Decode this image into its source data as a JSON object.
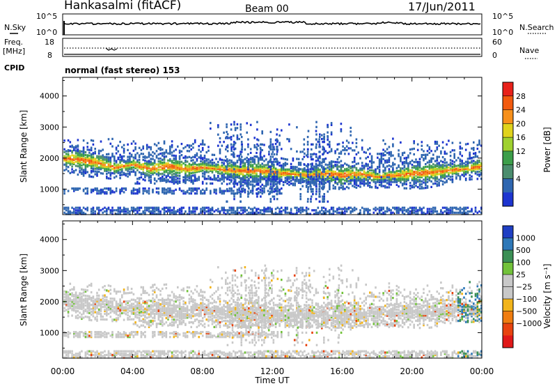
{
  "header": {
    "station": "Hankasalmi (fitACF)",
    "beam": "Beam 00",
    "date": "17/Jun/2011"
  },
  "top_panels": {
    "nsky": {
      "label": "N.Sky",
      "ytick_top": "10^5",
      "ytick_bottom": "10^0",
      "right_label": "N.Search",
      "right_top": "10^5",
      "right_bottom": "10^0"
    },
    "freq": {
      "label_line1": "Freq.",
      "label_line2": "[MHz]",
      "ytick_top": "18",
      "ytick_bottom": "8",
      "right_label": "Nave",
      "right_top": "60",
      "right_bottom": "0"
    },
    "cpid": {
      "label": "CPID",
      "value": "normal (fast stereo) 153"
    }
  },
  "chart_data": [
    {
      "type": "heatmap",
      "panel": "power",
      "xlabel": "Time UT",
      "ylabel": "Slant Range [km]",
      "xlim": [
        0,
        24
      ],
      "ylim": [
        180,
        4600
      ],
      "xticks": [
        "00:00",
        "04:00",
        "08:00",
        "12:00",
        "16:00",
        "20:00",
        "00:00"
      ],
      "yticks": [
        1000,
        2000,
        3000,
        4000
      ],
      "colorbar": {
        "label": "Power [dB]",
        "ticks": [
          "28",
          "24",
          "20",
          "16",
          "12",
          "8",
          "4"
        ],
        "colors": [
          "#e8211a",
          "#f25a0e",
          "#f7901b",
          "#e0d31c",
          "#9fd12f",
          "#3c9e4a",
          "#4b8d6e",
          "#2f66b0",
          "#1d35d0"
        ]
      },
      "main_band": {
        "time_hours": [
          0,
          1,
          2,
          3,
          4,
          5,
          6,
          7,
          8,
          9,
          10,
          11,
          12,
          13,
          14,
          15,
          16,
          17,
          18,
          19,
          20,
          21,
          22,
          23,
          24
        ],
        "range_km": [
          2000,
          1950,
          1850,
          1700,
          1800,
          1650,
          1750,
          1650,
          1700,
          1650,
          1600,
          1600,
          1550,
          1500,
          1450,
          1500,
          1450,
          1500,
          1400,
          1450,
          1500,
          1550,
          1600,
          1650,
          1750
        ]
      }
    },
    {
      "type": "heatmap",
      "panel": "velocity",
      "xlabel": "Time UT",
      "ylabel": "Slant Range [km]",
      "xlim": [
        0,
        24
      ],
      "ylim": [
        180,
        4600
      ],
      "xticks": [
        "00:00",
        "04:00",
        "08:00",
        "12:00",
        "16:00",
        "20:00",
        "00:00"
      ],
      "yticks": [
        1000,
        2000,
        3000,
        4000
      ],
      "colorbar": {
        "label": "Velocity [m s⁻¹]",
        "ticks": [
          "1000",
          "500",
          "100",
          "25",
          "−25",
          "−100",
          "−500",
          "−1000"
        ],
        "colors": [
          "#1f3fc4",
          "#2e78b8",
          "#3b8f55",
          "#72c23a",
          "#c8c8c8",
          "#c8c8c8",
          "#f2b41b",
          "#f07d10",
          "#e8430f",
          "#e01818"
        ]
      },
      "main_band": {
        "time_hours": [
          0,
          1,
          2,
          3,
          4,
          5,
          6,
          7,
          8,
          9,
          10,
          11,
          12,
          13,
          14,
          15,
          16,
          17,
          18,
          19,
          20,
          21,
          22,
          23,
          24
        ],
        "range_km": [
          2000,
          1950,
          1850,
          1750,
          1800,
          1700,
          1750,
          1700,
          1750,
          1700,
          1650,
          1650,
          1600,
          1550,
          1600,
          1600,
          1550,
          1600,
          1600,
          1600,
          1650,
          1650,
          1700,
          1700,
          1750
        ]
      }
    }
  ],
  "colors": {
    "ground_grey": "#c8c8c8",
    "frame": "#000000"
  }
}
